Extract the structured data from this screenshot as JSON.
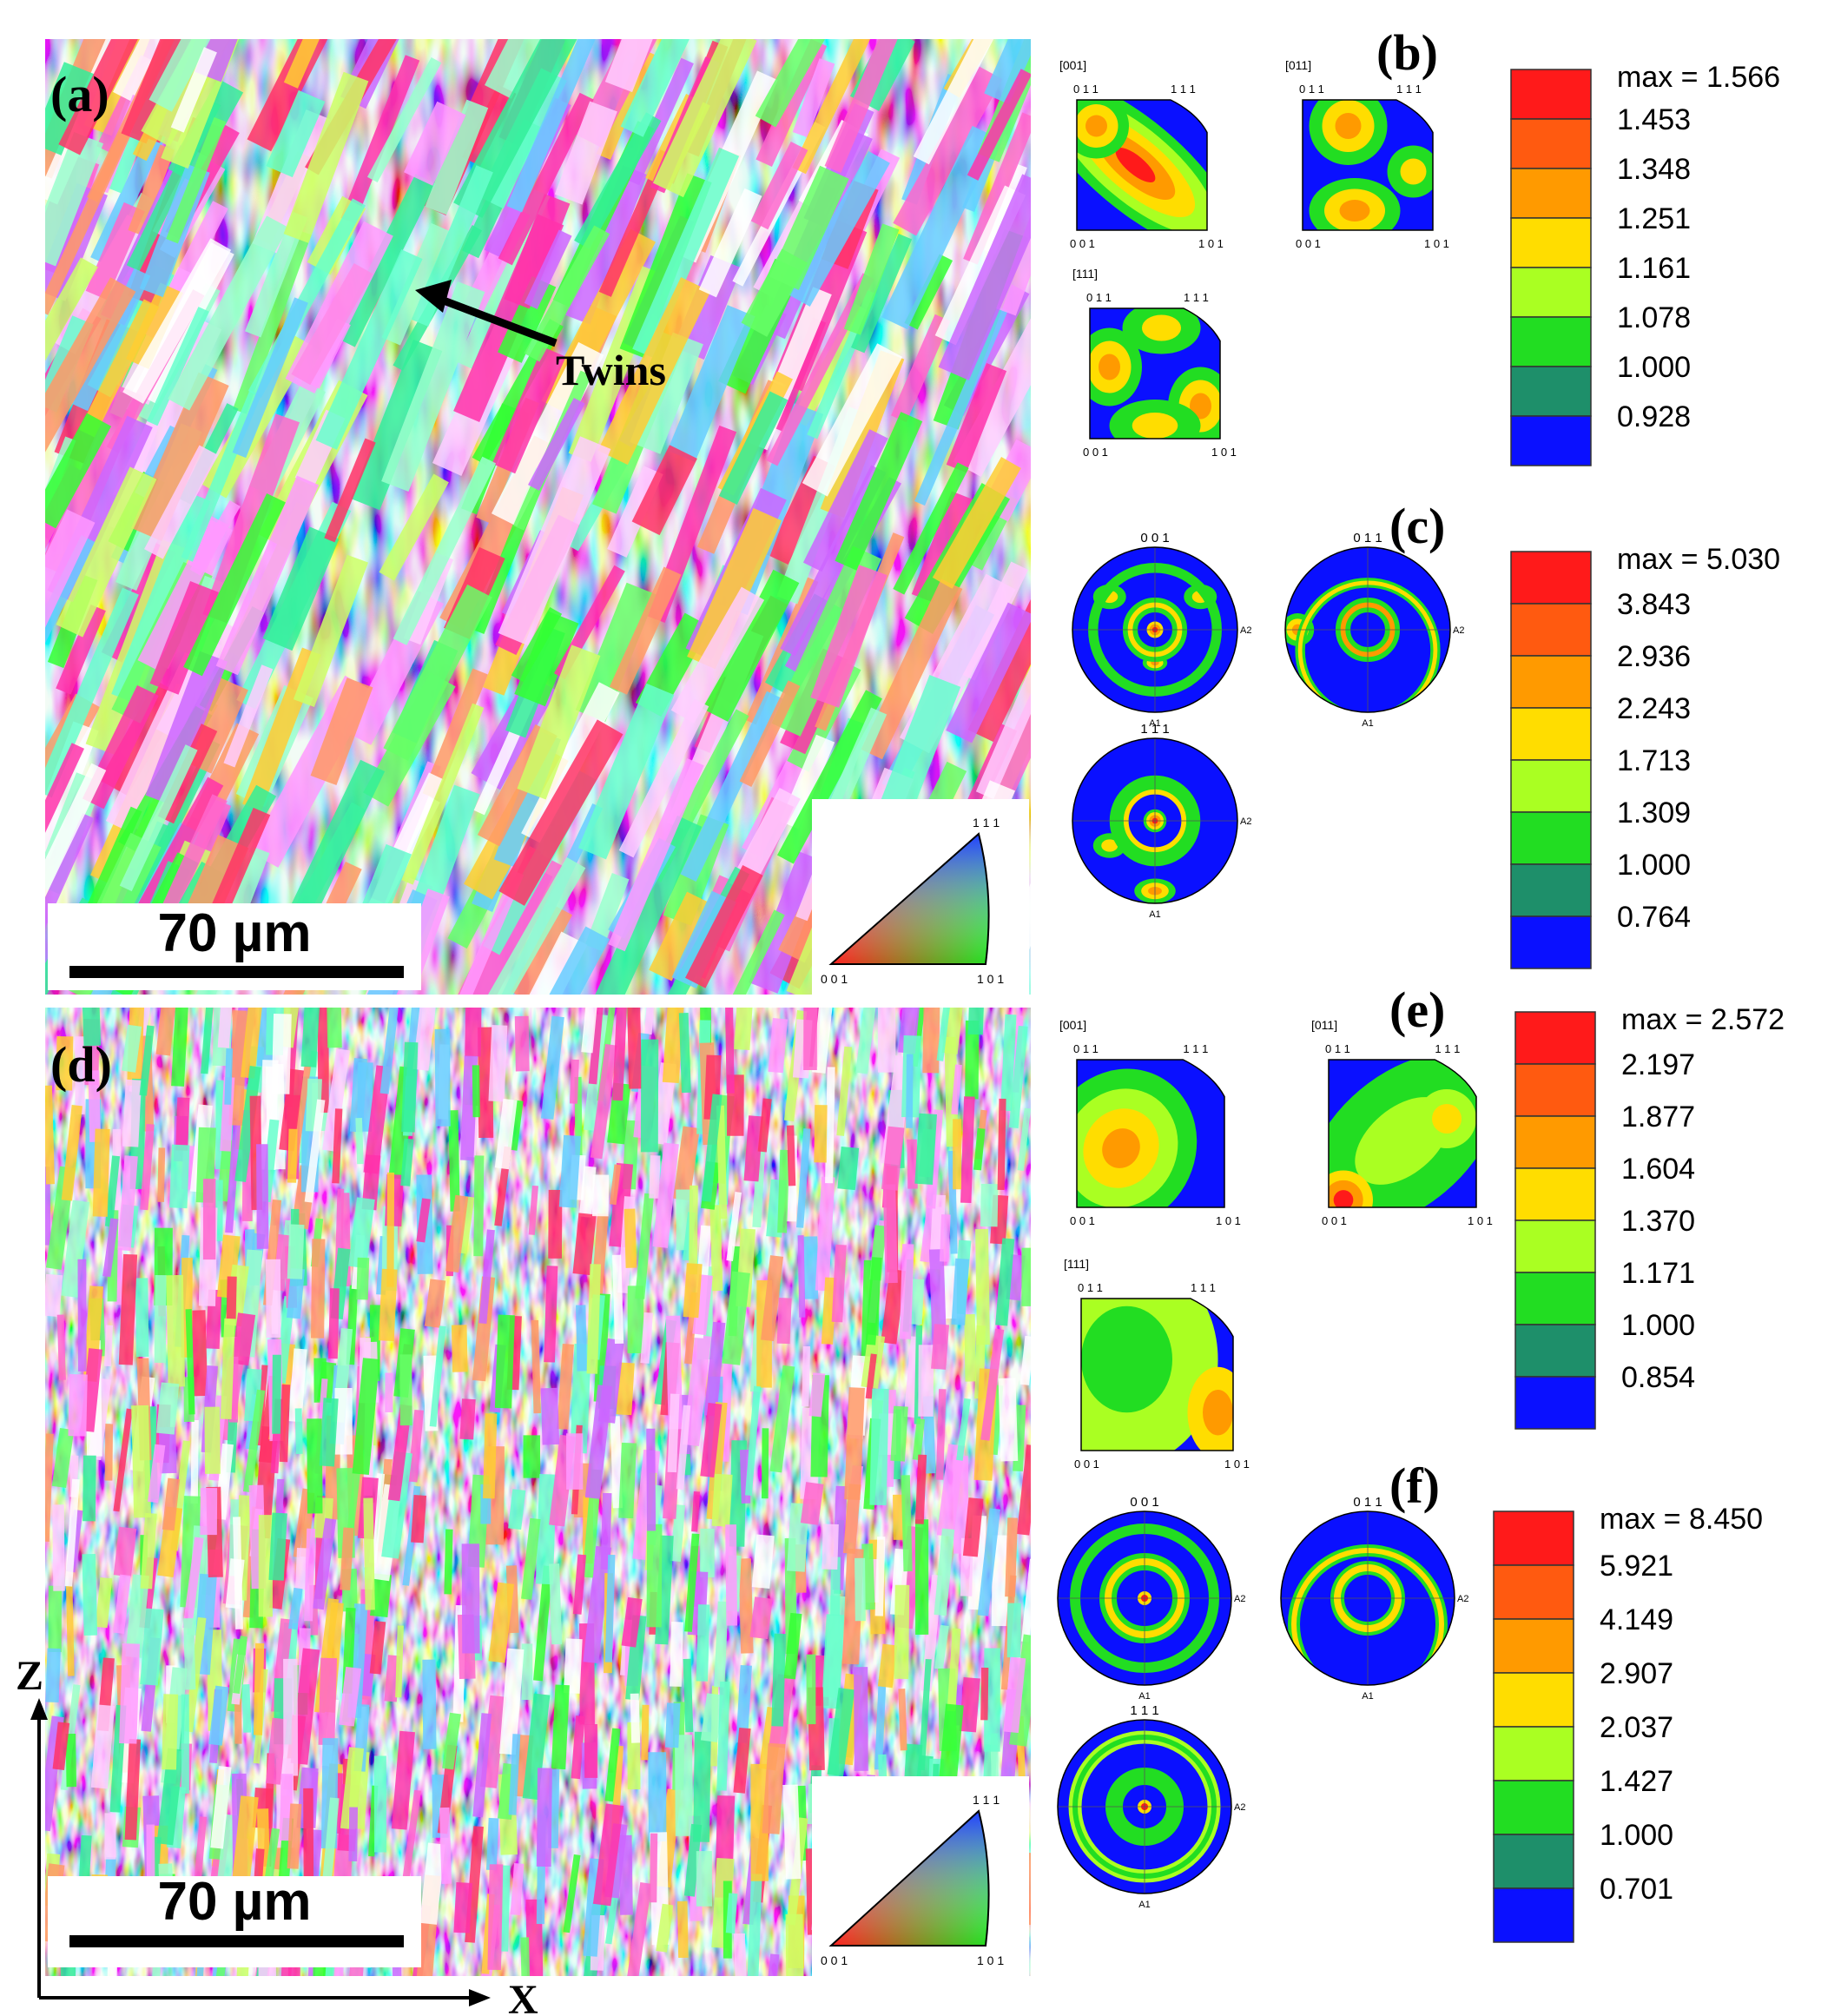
{
  "panels": {
    "a": "(a)",
    "b": "(b)",
    "c": "(c)",
    "d": "(d)",
    "e": "(e)",
    "f": "(f)"
  },
  "annotations": {
    "twins": "Twins",
    "scale_bar_a": "70 µm",
    "scale_bar_d": "70 µm",
    "axis_z": "Z",
    "axis_x": "X"
  },
  "ipf_key": {
    "top": "1 1 1",
    "bottom_left": "0 0 1",
    "bottom_right": "1 0 1"
  },
  "ipf_plots": {
    "b": [
      {
        "title": "[001]",
        "tl": "0 1 1",
        "tr": "1 1 1",
        "bl": "0 0 1",
        "br": "1 0 1"
      },
      {
        "title": "[011]",
        "tl": "0 1 1",
        "tr": "1 1 1",
        "bl": "0 0 1",
        "br": "1 0 1"
      },
      {
        "title": "[111]",
        "tl": "0 1 1",
        "tr": "1 1 1",
        "bl": "0 0 1",
        "br": "1 0 1"
      }
    ],
    "e": [
      {
        "title": "[001]",
        "tl": "0 1 1",
        "tr": "1 1 1",
        "bl": "0 0 1",
        "br": "1 0 1"
      },
      {
        "title": "[011]",
        "tl": "0 1 1",
        "tr": "1 1 1",
        "bl": "0 0 1",
        "br": "1 0 1"
      },
      {
        "title": "[111]",
        "tl": "0 1 1",
        "tr": "1 1 1",
        "bl": "0 0 1",
        "br": "1 0 1"
      }
    ]
  },
  "pole_figures": {
    "c": [
      {
        "title": "0 0 1",
        "a1": "A1",
        "a2": "A2"
      },
      {
        "title": "0 1 1",
        "a1": "A1",
        "a2": "A2"
      },
      {
        "title": "1 1 1",
        "a1": "A1",
        "a2": "A2"
      }
    ],
    "f": [
      {
        "title": "0 0 1",
        "a1": "A1",
        "a2": "A2"
      },
      {
        "title": "0 1 1",
        "a1": "A1",
        "a2": "A2"
      },
      {
        "title": "1 1 1",
        "a1": "A1",
        "a2": "A2"
      }
    ]
  },
  "legends": {
    "b": {
      "max": "max = 1.566",
      "levels": [
        "1.453",
        "1.348",
        "1.251",
        "1.161",
        "1.078",
        "1.000",
        "0.928"
      ]
    },
    "c": {
      "max": "max = 5.030",
      "levels": [
        "3.843",
        "2.936",
        "2.243",
        "1.713",
        "1.309",
        "1.000",
        "0.764"
      ]
    },
    "e": {
      "max": "max = 2.572",
      "levels": [
        "2.197",
        "1.877",
        "1.604",
        "1.370",
        "1.171",
        "1.000",
        "0.854"
      ]
    },
    "f": {
      "max": "max = 8.450",
      "levels": [
        "5.921",
        "4.149",
        "2.907",
        "2.037",
        "1.427",
        "1.000",
        "0.701"
      ]
    }
  },
  "legend_colors": [
    "#ff1a1a",
    "#ff5a10",
    "#ff9a00",
    "#ffdd00",
    "#aaff22",
    "#22dd22",
    "#1e8f6a",
    "#0a10ff"
  ]
}
